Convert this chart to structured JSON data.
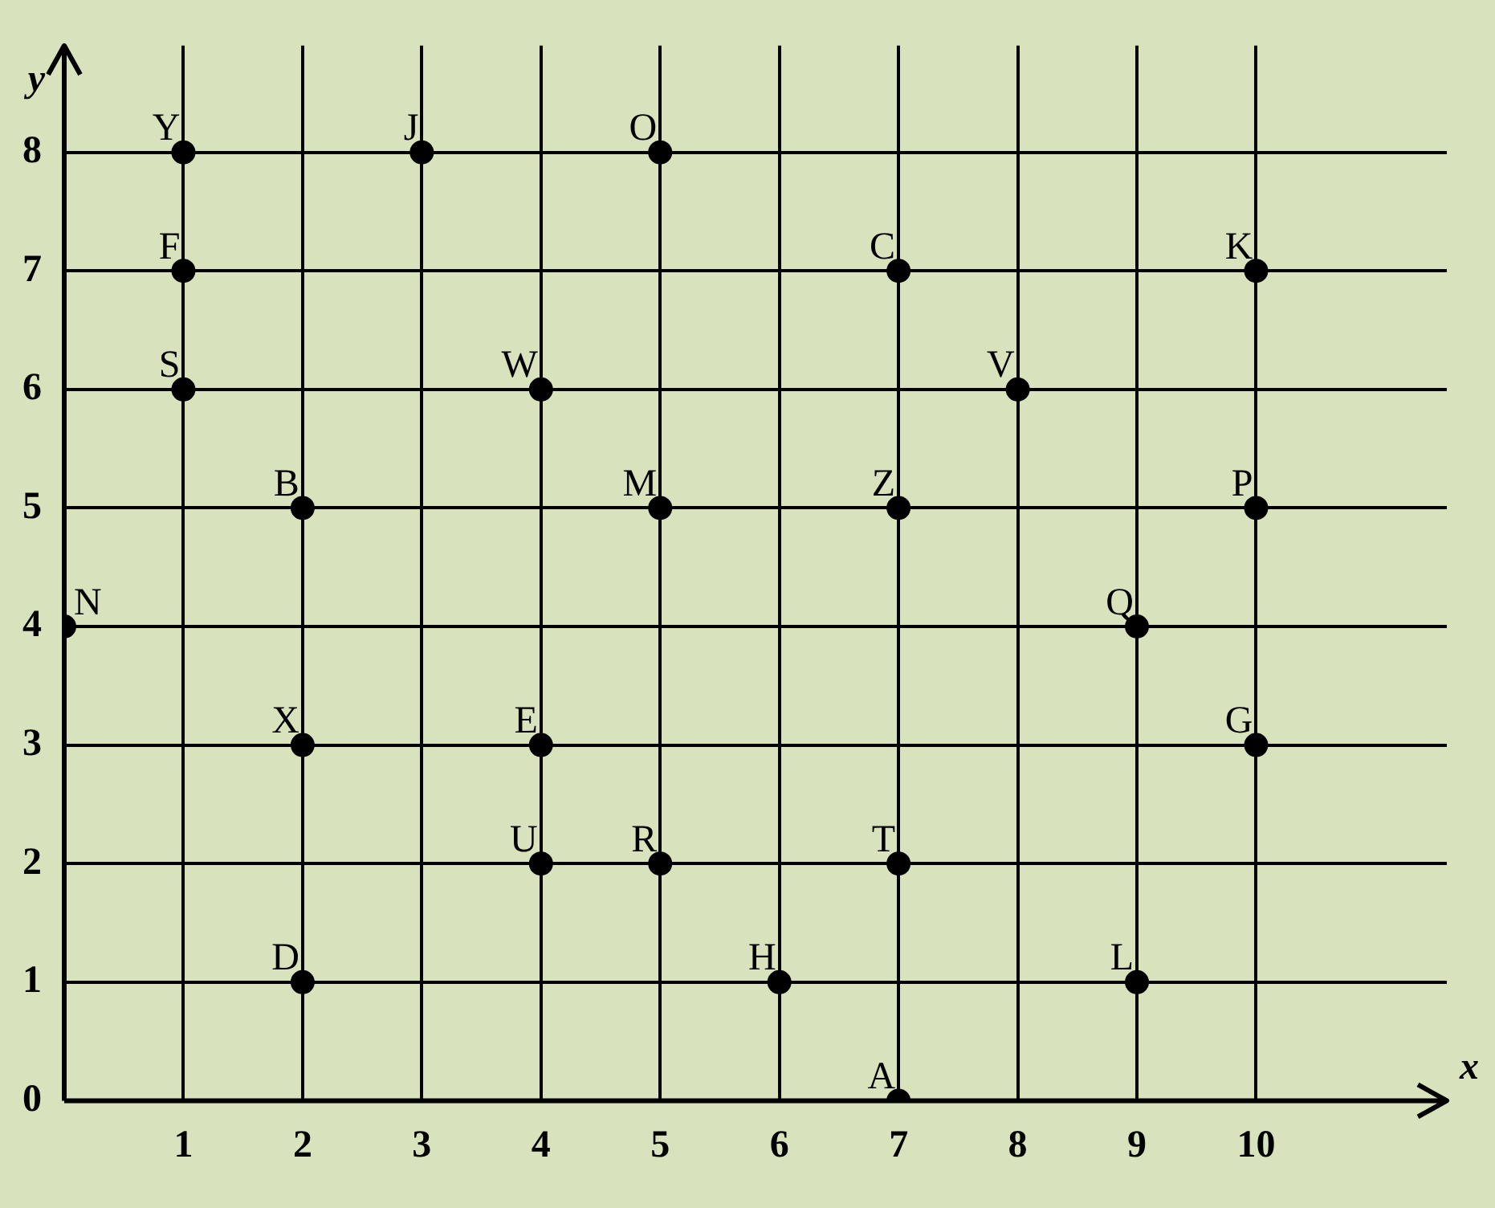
{
  "chart_data": {
    "type": "scatter",
    "xlabel": "x",
    "ylabel": "y",
    "x": [
      1,
      3,
      5,
      1,
      7,
      10,
      1,
      4,
      8,
      2,
      5,
      7,
      10,
      0,
      9,
      2,
      4,
      10,
      4,
      5,
      7,
      2,
      6,
      9,
      7
    ],
    "values": [
      8,
      8,
      8,
      7,
      7,
      7,
      6,
      6,
      6,
      5,
      5,
      5,
      5,
      4,
      4,
      3,
      3,
      3,
      2,
      2,
      2,
      1,
      1,
      1,
      0
    ],
    "value_labels": [
      "Y",
      "J",
      "O",
      "F",
      "C",
      "K",
      "S",
      "W",
      "V",
      "B",
      "M",
      "Z",
      "P",
      "N",
      "Q",
      "X",
      "E",
      "G",
      "U",
      "R",
      "T",
      "D",
      "H",
      "L",
      "A"
    ],
    "color": "#000000",
    "marker": "circle",
    "grid": true,
    "xlim": [
      0,
      11.6
    ],
    "xticks": [
      1,
      2,
      3,
      4,
      5,
      6,
      7,
      8,
      9,
      10
    ],
    "ylim": [
      0,
      8.9
    ],
    "yticks": [
      0,
      1,
      2,
      3,
      4,
      5,
      6,
      7,
      8
    ]
  }
}
